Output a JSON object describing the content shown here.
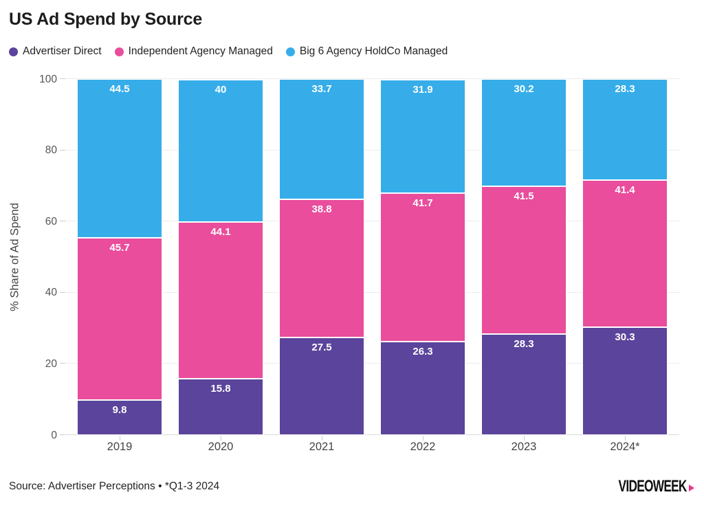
{
  "header": {
    "title": "US Ad Spend by Source"
  },
  "chart_data": {
    "type": "bar",
    "stacked": true,
    "title": "US Ad Spend by Source",
    "categories": [
      "2019",
      "2020",
      "2021",
      "2022",
      "2023",
      "2024*"
    ],
    "series": [
      {
        "name": "Advertiser Direct",
        "color": "#5b449b",
        "values": [
          9.8,
          15.8,
          27.5,
          26.3,
          28.3,
          30.3
        ]
      },
      {
        "name": "Independent Agency Managed",
        "color": "#e94d9c",
        "values": [
          45.7,
          44.1,
          38.8,
          41.7,
          41.5,
          41.4
        ]
      },
      {
        "name": "Big 6 Agency HoldCo Managed",
        "color": "#36ade9",
        "values": [
          44.5,
          40,
          33.7,
          31.9,
          30.2,
          28.3
        ]
      }
    ],
    "xlabel": "",
    "ylabel": "% Share of Ad Spend",
    "ylim": [
      0,
      100
    ],
    "yticks": [
      0,
      20,
      40,
      60,
      80,
      100
    ],
    "grid": true,
    "legend_position": "top",
    "value_labels": "inside-top"
  },
  "footer": {
    "source": "Source: Advertiser Perceptions • *Q1-3 2024",
    "brand": "VIDEOWEEK",
    "brand_arrow_color": "#f0338a"
  }
}
